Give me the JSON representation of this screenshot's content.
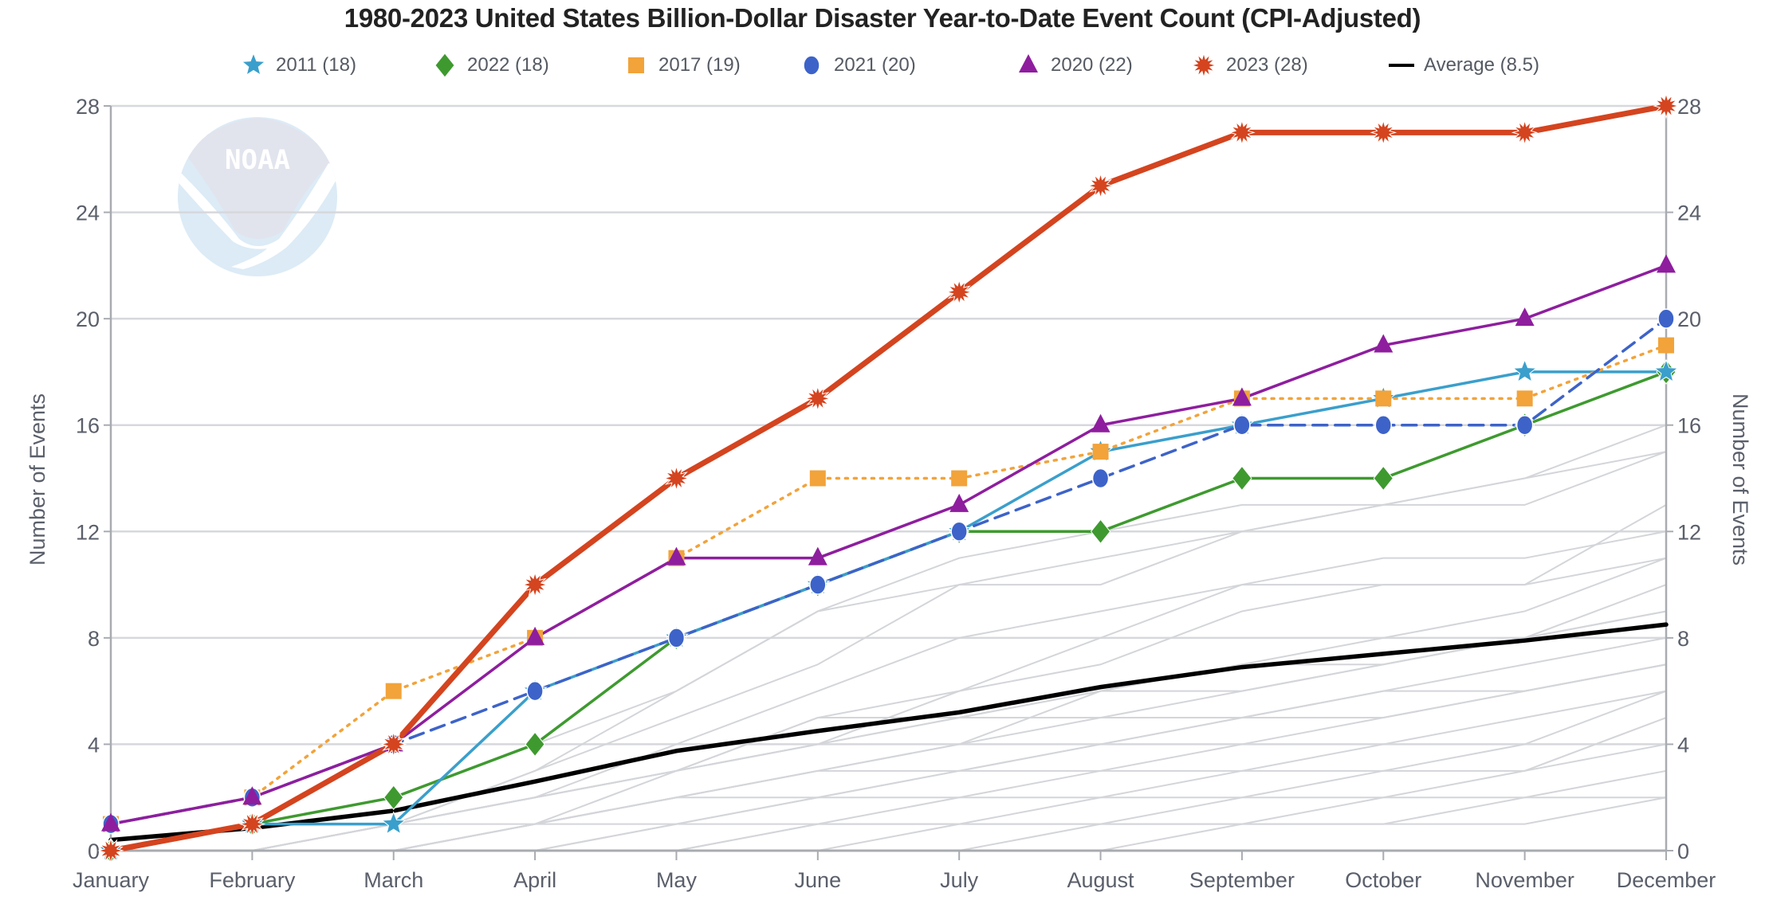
{
  "chart_data": {
    "type": "line",
    "title": "1980-2023 United States Billion-Dollar Disaster Year-to-Date Event Count (CPI-Adjusted)",
    "xlabel": "",
    "ylabel": "Number of Events",
    "ylabel_right": "Number of Events",
    "ylim": [
      0,
      28
    ],
    "yticks": [
      0,
      4,
      8,
      12,
      16,
      20,
      24,
      28
    ],
    "grid": true,
    "legend_position": "top-center",
    "categories": [
      "January",
      "February",
      "March",
      "April",
      "May",
      "June",
      "July",
      "August",
      "September",
      "October",
      "November",
      "December"
    ],
    "series": [
      {
        "name": "2011",
        "legend": "2011 (18)",
        "color": "#3a9fcc",
        "marker": "star",
        "dash": "solid",
        "values": [
          0,
          1,
          1,
          6,
          8,
          10,
          12,
          15,
          16,
          17,
          18,
          18
        ]
      },
      {
        "name": "2022",
        "legend": "2022 (18)",
        "color": "#3e9a2f",
        "marker": "diamond",
        "dash": "solid",
        "values": [
          0,
          1,
          2,
          4,
          8,
          10,
          12,
          12,
          14,
          14,
          16,
          18
        ]
      },
      {
        "name": "2017",
        "legend": "2017 (19)",
        "color": "#f2a33a",
        "marker": "square",
        "dash": "dotted",
        "values": [
          1,
          2,
          6,
          8,
          11,
          14,
          14,
          15,
          17,
          17,
          17,
          19
        ]
      },
      {
        "name": "2021",
        "legend": "2021 (20)",
        "color": "#3d63c9",
        "marker": "circle",
        "dash": "dashed",
        "values": [
          1,
          2,
          4,
          6,
          8,
          10,
          12,
          14,
          16,
          16,
          16,
          20
        ]
      },
      {
        "name": "2020",
        "legend": "2020 (22)",
        "color": "#8e1e9e",
        "marker": "triangle",
        "dash": "solid",
        "values": [
          1,
          2,
          4,
          8,
          11,
          11,
          13,
          16,
          17,
          19,
          20,
          22
        ]
      },
      {
        "name": "2023",
        "legend": "2023 (28)",
        "color": "#d4441f",
        "marker": "burst",
        "dash": "solid",
        "values": [
          0,
          1,
          4,
          10,
          14,
          17,
          21,
          25,
          27,
          27,
          27,
          28
        ]
      },
      {
        "name": "Average",
        "legend": "Average (8.5)",
        "color": "#000000",
        "marker": "none",
        "dash": "solid",
        "values": [
          0.4,
          0.85,
          1.5,
          2.6,
          3.75,
          4.5,
          5.2,
          6.15,
          6.9,
          7.4,
          7.9,
          8.5
        ]
      }
    ],
    "other_years": {
      "color": "#d3d5d9",
      "series": [
        [
          0,
          0,
          1,
          3,
          6,
          9,
          10,
          10,
          12,
          13,
          14,
          16
        ],
        [
          0,
          1,
          2,
          4,
          6,
          9,
          11,
          12,
          13,
          13,
          13,
          15
        ],
        [
          0,
          0,
          1,
          3,
          5,
          7,
          10,
          11,
          12,
          13,
          14,
          15
        ],
        [
          0,
          0,
          1,
          2,
          4,
          6,
          8,
          9,
          10,
          10,
          10,
          13
        ],
        [
          0,
          0,
          1,
          2,
          3,
          5,
          6,
          8,
          10,
          11,
          11,
          12
        ],
        [
          0,
          1,
          1,
          2,
          3,
          4,
          6,
          7,
          9,
          10,
          10,
          11
        ],
        [
          0,
          0,
          1,
          2,
          3,
          5,
          5,
          6,
          7,
          8,
          9,
          11
        ],
        [
          0,
          0,
          0,
          1,
          3,
          4,
          5,
          6,
          7,
          7,
          8,
          10
        ],
        [
          0,
          0,
          1,
          1,
          2,
          3,
          4,
          6,
          6,
          7,
          8,
          9
        ],
        [
          0,
          0,
          0,
          1,
          2,
          3,
          3,
          4,
          5,
          6,
          7,
          8
        ],
        [
          0,
          0,
          0,
          1,
          1,
          2,
          3,
          4,
          5,
          5,
          6,
          7
        ],
        [
          0,
          0,
          0,
          1,
          2,
          2,
          3,
          3,
          4,
          5,
          6,
          7
        ],
        [
          0,
          0,
          0,
          0,
          1,
          2,
          2,
          3,
          3,
          4,
          5,
          6
        ],
        [
          0,
          0,
          0,
          0,
          1,
          1,
          2,
          2,
          3,
          3,
          4,
          6
        ],
        [
          0,
          0,
          0,
          0,
          0,
          1,
          1,
          2,
          2,
          3,
          3,
          5
        ],
        [
          0,
          0,
          0,
          0,
          0,
          1,
          1,
          1,
          2,
          2,
          3,
          4
        ],
        [
          0,
          0,
          0,
          0,
          0,
          0,
          1,
          1,
          1,
          2,
          2,
          3
        ],
        [
          0,
          0,
          0,
          0,
          0,
          0,
          0,
          1,
          1,
          1,
          2,
          2
        ],
        [
          0,
          0,
          0,
          0,
          0,
          0,
          0,
          0,
          1,
          1,
          1,
          2
        ],
        [
          0,
          0,
          0,
          1,
          2,
          3,
          4,
          5,
          5,
          6,
          6,
          7
        ],
        [
          0,
          0,
          1,
          2,
          3,
          4,
          5,
          5,
          6,
          7,
          8,
          9
        ]
      ]
    }
  },
  "watermark": {
    "text": "NOAA",
    "top_color": "#e1e4ed",
    "bottom_color": "#dcebf6"
  }
}
